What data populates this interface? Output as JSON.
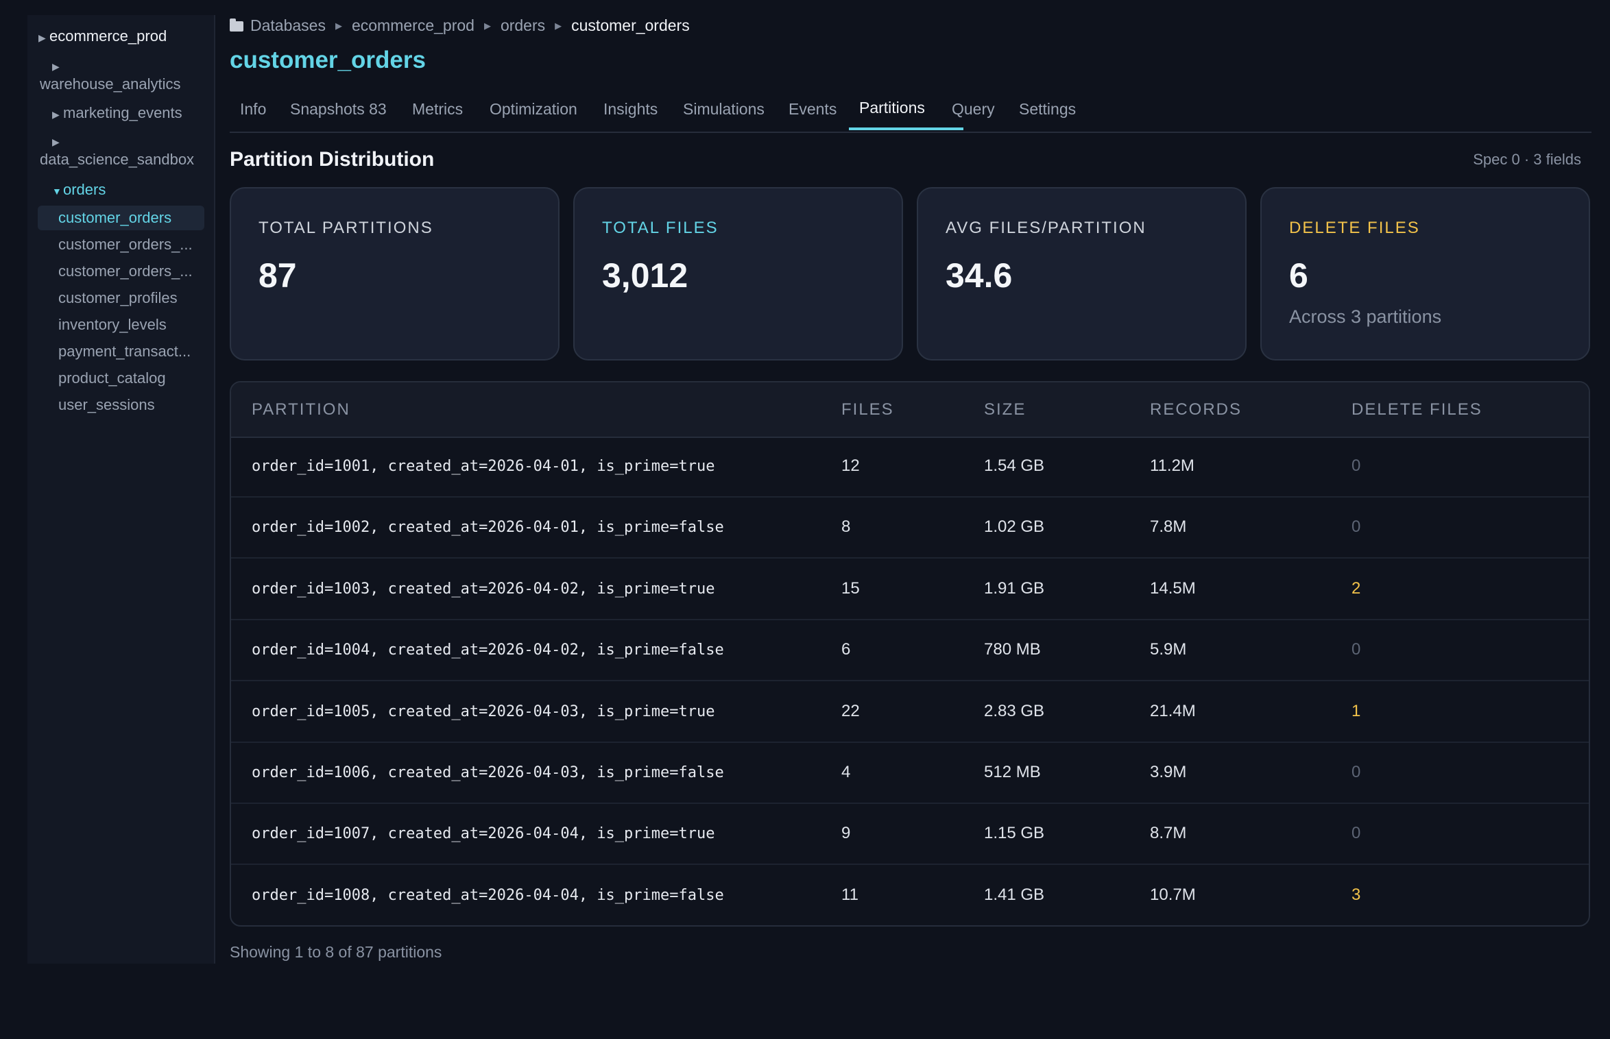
{
  "sidebar": {
    "root": "ecommerce_prod",
    "dbs": [
      "warehouse_analytics",
      "marketing_events",
      "data_science_sandbox"
    ],
    "open_db": "orders",
    "tables": [
      "customer_orders",
      "customer_orders_...",
      "customer_orders_...",
      "customer_profiles",
      "inventory_levels",
      "payment_transact...",
      "product_catalog",
      "user_sessions"
    ],
    "active_table": "customer_orders"
  },
  "breadcrumb": [
    "Databases",
    "ecommerce_prod",
    "orders",
    "customer_orders"
  ],
  "page_title": "customer_orders",
  "tabs": [
    "Info",
    "Snapshots 83",
    "Metrics",
    "Optimization",
    "Insights",
    "Simulations",
    "Events",
    "Partitions",
    "Query",
    "Settings"
  ],
  "active_tab": "Partitions",
  "section": {
    "title": "Partition Distribution",
    "spec": "Spec 0 · 3 fields"
  },
  "cards": [
    {
      "label": "TOTAL PARTITIONS",
      "value": "87"
    },
    {
      "label": "TOTAL FILES",
      "value": "3,012"
    },
    {
      "label": "AVG FILES/PARTITION",
      "value": "34.6"
    },
    {
      "label": "DELETE FILES",
      "value": "6",
      "sub": "Across 3 partitions"
    }
  ],
  "colors": {
    "accent": "#63d4e6",
    "warning": "#f2c24a",
    "muted": "#5c6474"
  },
  "table": {
    "columns": [
      "PARTITION",
      "FILES",
      "SIZE",
      "RECORDS",
      "DELETE FILES"
    ],
    "rows": [
      {
        "partition": "order_id=1001, created_at=2026-04-01, is_prime=true",
        "files": "12",
        "size": "1.54 GB",
        "records": "11.2M",
        "delete_files": "0"
      },
      {
        "partition": "order_id=1002, created_at=2026-04-01, is_prime=false",
        "files": "8",
        "size": "1.02 GB",
        "records": "7.8M",
        "delete_files": "0"
      },
      {
        "partition": "order_id=1003, created_at=2026-04-02, is_prime=true",
        "files": "15",
        "size": "1.91 GB",
        "records": "14.5M",
        "delete_files": "2"
      },
      {
        "partition": "order_id=1004, created_at=2026-04-02, is_prime=false",
        "files": "6",
        "size": "780 MB",
        "records": "5.9M",
        "delete_files": "0"
      },
      {
        "partition": "order_id=1005, created_at=2026-04-03, is_prime=true",
        "files": "22",
        "size": "2.83 GB",
        "records": "21.4M",
        "delete_files": "1"
      },
      {
        "partition": "order_id=1006, created_at=2026-04-03, is_prime=false",
        "files": "4",
        "size": "512 MB",
        "records": "3.9M",
        "delete_files": "0"
      },
      {
        "partition": "order_id=1007, created_at=2026-04-04, is_prime=true",
        "files": "9",
        "size": "1.15 GB",
        "records": "8.7M",
        "delete_files": "0"
      },
      {
        "partition": "order_id=1008, created_at=2026-04-04, is_prime=false",
        "files": "11",
        "size": "1.41 GB",
        "records": "10.7M",
        "delete_files": "3"
      }
    ]
  },
  "footer": "Showing 1 to 8 of 87 partitions"
}
